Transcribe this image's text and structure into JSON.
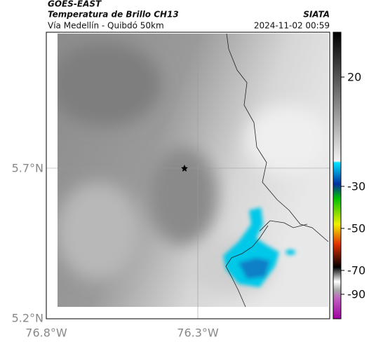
{
  "header": {
    "source": "GOES-EAST",
    "title": "Temperatura de Brillo CH13",
    "subtitle": "Vía Medellín - Quibdó 50km",
    "organization": "SIATA",
    "timestamp": "2024-11-02 00:59"
  },
  "map": {
    "lat_labels": [
      "5.7°N",
      "5.2°N"
    ],
    "lon_labels": [
      "76.8°W",
      "76.3°W"
    ]
  },
  "colorbar": {
    "labels": [
      "20",
      "-30",
      "-50",
      "-70",
      "-90"
    ]
  }
}
